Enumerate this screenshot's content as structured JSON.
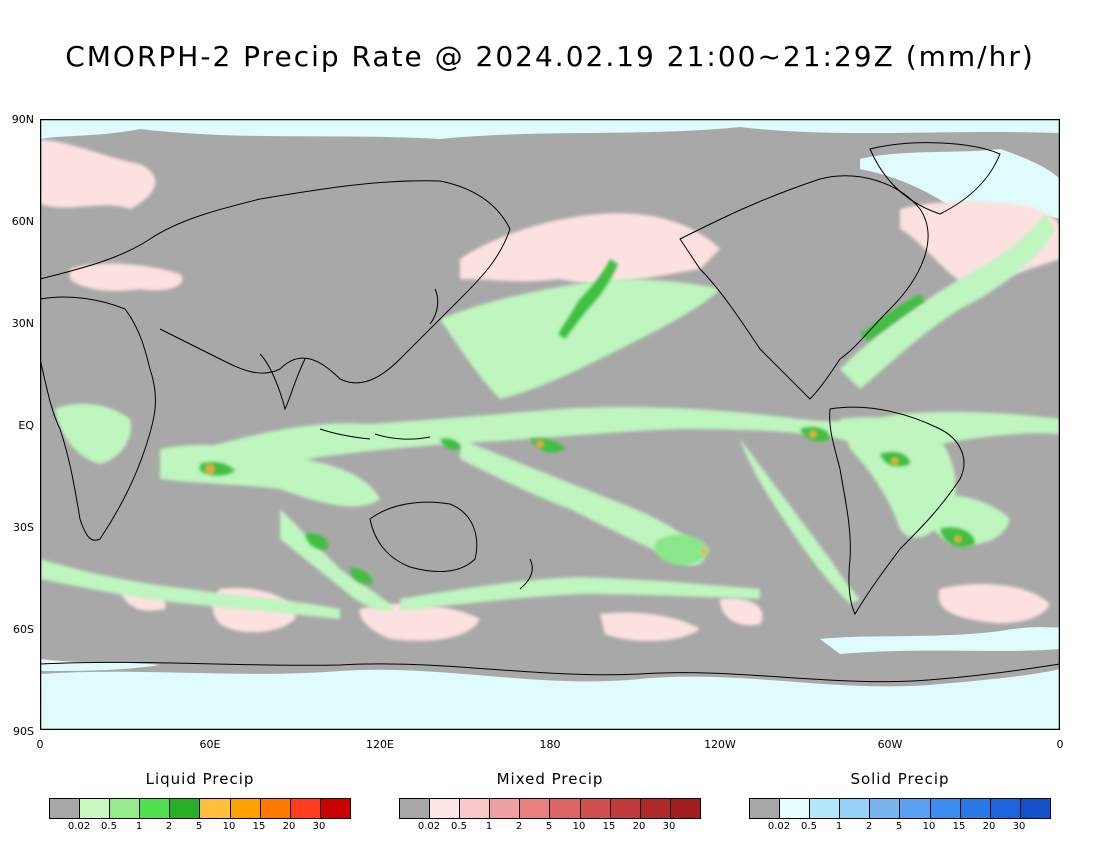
{
  "title": "CMORPH-2 Precip Rate @ 2024.02.19 21:00~21:29Z (mm/hr)",
  "lat_labels": [
    "90N",
    "60N",
    "30N",
    "EQ",
    "30S",
    "60S",
    "90S"
  ],
  "lon_labels": [
    "0",
    "60E",
    "120E",
    "180",
    "120W",
    "60W",
    "0"
  ],
  "map_colors": {
    "no_precip": "#a8a8a8",
    "ice_snow_surface": "#e0fbfb",
    "liquid_light": "#bff5bf",
    "liquid_mod": "#8ae68a",
    "liquid_heavy": "#3fbf3f",
    "liquid_intense": "#ffa040",
    "mixed_light": "#fde1e1",
    "coastline": "#000000"
  },
  "legends": [
    {
      "title": "Liquid Precip",
      "colors": [
        "#a8a8a8",
        "#c8f8c0",
        "#96ec8c",
        "#50e050",
        "#28b028",
        "#ffc040",
        "#ffa000",
        "#ff7800",
        "#ff3c1e",
        "#c80000"
      ],
      "ticks": [
        "0.02",
        "0.5",
        "1",
        "2",
        "5",
        "10",
        "15",
        "20",
        "30"
      ]
    },
    {
      "title": "Mixed Precip",
      "colors": [
        "#a8a8a8",
        "#fde6e6",
        "#fac8c8",
        "#f0a0a0",
        "#e88080",
        "#dc6464",
        "#d05050",
        "#c03c3c",
        "#b02828",
        "#a01e1e"
      ],
      "ticks": [
        "0.02",
        "0.5",
        "1",
        "2",
        "5",
        "10",
        "15",
        "20",
        "30"
      ]
    },
    {
      "title": "Solid Precip",
      "colors": [
        "#a8a8a8",
        "#e6ffff",
        "#b4e6fa",
        "#96d2fa",
        "#78b4f0",
        "#5aa0f0",
        "#3c8cf0",
        "#2878e6",
        "#1e64dc",
        "#1450c8"
      ],
      "ticks": [
        "0.02",
        "0.5",
        "1",
        "2",
        "5",
        "10",
        "15",
        "20",
        "30"
      ]
    }
  ]
}
